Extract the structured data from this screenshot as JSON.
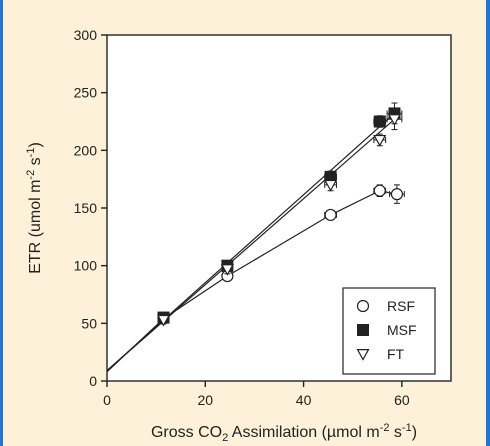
{
  "chart_data": {
    "type": "scatter",
    "xlabel_parts": [
      "Gross CO",
      "2",
      " Assimilation (µmol m",
      "-2",
      " s",
      "-1",
      ")"
    ],
    "ylabel_parts": [
      "ETR (umol m",
      "-2",
      " s",
      "-1",
      ")"
    ],
    "xlim": [
      0,
      70
    ],
    "ylim": [
      0,
      300
    ],
    "x_ticks": [
      0,
      20,
      40,
      60
    ],
    "y_ticks": [
      0,
      50,
      100,
      150,
      200,
      250,
      300
    ],
    "legend_position": "bottom-right",
    "grid": false,
    "series": [
      {
        "name": "RSF",
        "marker": "open-circle",
        "x": [
          11.5,
          24.5,
          45.5,
          55.5,
          59
        ],
        "y": [
          54,
          91,
          144,
          165,
          162
        ],
        "x_err": [
          1.0,
          1.0,
          1.2,
          1.2,
          1.5
        ],
        "y_err": [
          3,
          4,
          4,
          5,
          8
        ],
        "fit_line": [
          [
            0,
            8
          ],
          [
            11.5,
            54
          ],
          [
            24.5,
            91
          ],
          [
            45.5,
            144
          ],
          [
            55.5,
            165
          ],
          [
            59,
            162
          ]
        ]
      },
      {
        "name": "MSF",
        "marker": "filled-square",
        "x": [
          11.5,
          24.5,
          45.5,
          55.5,
          58.5
        ],
        "y": [
          55,
          100,
          177,
          225,
          232
        ],
        "x_err": [
          1.0,
          1.0,
          1.2,
          1.2,
          1.5
        ],
        "y_err": [
          3,
          4,
          5,
          5,
          9
        ],
        "fit_line": [
          [
            0,
            9
          ],
          [
            58.5,
            232
          ]
        ]
      },
      {
        "name": "FT",
        "marker": "open-triangle-down",
        "x": [
          11.5,
          24.5,
          45.5,
          55.5,
          58.5
        ],
        "y": [
          53,
          97,
          170,
          209,
          227
        ],
        "x_err": [
          1.0,
          1.0,
          1.2,
          1.2,
          1.5
        ],
        "y_err": [
          3,
          4,
          5,
          5,
          9
        ],
        "fit_line": [
          [
            0,
            9
          ],
          [
            58.5,
            227
          ]
        ]
      }
    ]
  },
  "colors": {
    "frame_background": "#fdf2d9",
    "frame_border": "#2a73c9",
    "ink": "#222222"
  }
}
